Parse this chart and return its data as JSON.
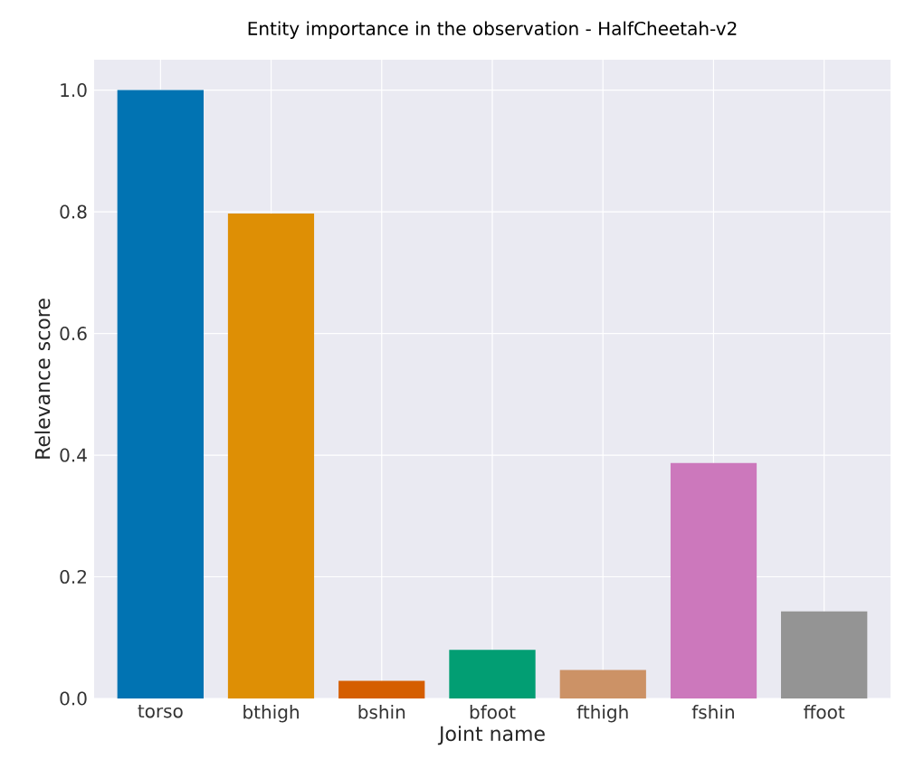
{
  "chart_data": {
    "type": "bar",
    "title": "Entity importance in the observation - HalfCheetah-v2",
    "xlabel": "Joint name",
    "ylabel": "Relevance score",
    "categories": [
      "torso",
      "bthigh",
      "bshin",
      "bfoot",
      "fthigh",
      "fshin",
      "ffoot"
    ],
    "values": [
      1.0,
      0.797,
      0.029,
      0.08,
      0.047,
      0.387,
      0.143
    ],
    "colors": [
      "#0173b2",
      "#de8f05",
      "#d55e00",
      "#029e73",
      "#cc9266",
      "#cc78bc",
      "#949494"
    ],
    "ylim": [
      0,
      1.05
    ],
    "yticks": [
      {
        "value": 0,
        "label": "0.0"
      },
      0.2,
      0.4,
      0.6,
      0.8,
      {
        "value": 1,
        "label": "1.0"
      }
    ],
    "grid": true
  }
}
